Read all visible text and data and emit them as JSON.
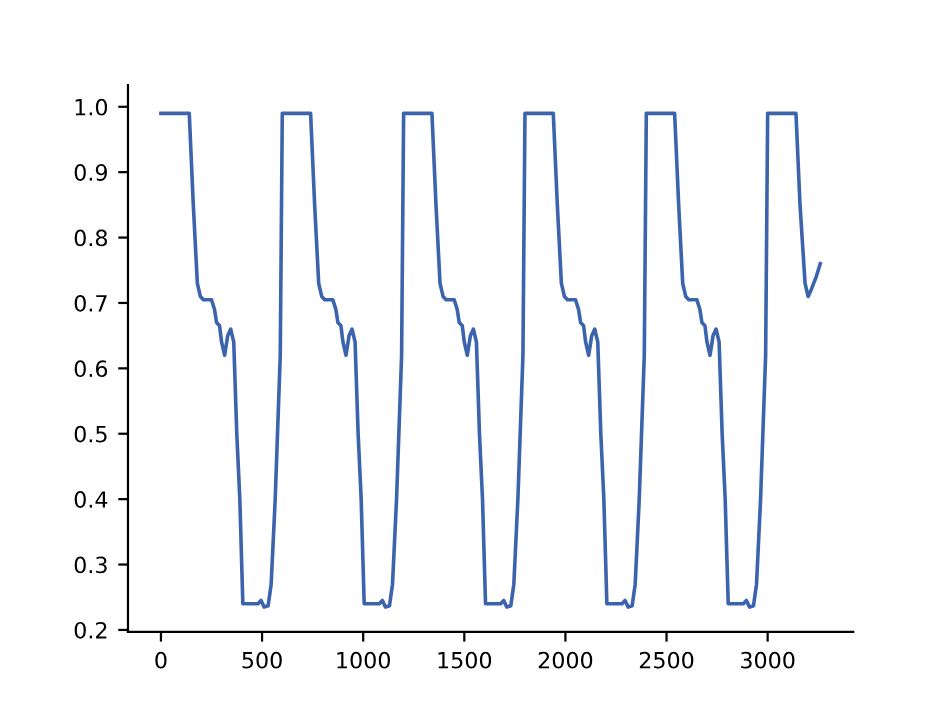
{
  "chart_data": {
    "type": "line",
    "xlim": [
      -163,
      3423
    ],
    "ylim": [
      0.197,
      1.033
    ],
    "xticks": [
      0,
      500,
      1000,
      1500,
      2000,
      2500,
      3000
    ],
    "yticks": [
      {
        "value": 0.2,
        "label": "0.2"
      },
      {
        "value": 0.3,
        "label": "0.3"
      },
      {
        "value": 0.4,
        "label": "0.4"
      },
      {
        "value": 0.5,
        "label": "0.5"
      },
      {
        "value": 0.6,
        "label": "0.6"
      },
      {
        "value": 0.7,
        "label": "0.7"
      },
      {
        "value": 0.8,
        "label": "0.8"
      },
      {
        "value": 0.9,
        "label": "0.9"
      },
      {
        "value": 1.0,
        "label": "1.0"
      }
    ],
    "grid": false,
    "marker": "none",
    "line_style": "solid",
    "series": [
      {
        "color": "#3b64ad",
        "x": [
          0,
          140,
          160,
          180,
          195,
          210,
          250,
          265,
          275,
          290,
          300,
          315,
          330,
          345,
          360,
          375,
          390,
          405,
          480,
          495,
          510,
          530,
          545,
          565,
          590,
          600,
          740,
          760,
          780,
          795,
          810,
          850,
          865,
          875,
          890,
          900,
          915,
          930,
          945,
          960,
          975,
          990,
          1005,
          1080,
          1095,
          1110,
          1130,
          1145,
          1165,
          1190,
          1200,
          1340,
          1360,
          1380,
          1395,
          1410,
          1450,
          1465,
          1475,
          1490,
          1500,
          1515,
          1530,
          1545,
          1560,
          1575,
          1590,
          1605,
          1680,
          1695,
          1710,
          1730,
          1745,
          1765,
          1790,
          1800,
          1940,
          1960,
          1980,
          1995,
          2010,
          2050,
          2065,
          2075,
          2090,
          2100,
          2115,
          2130,
          2145,
          2160,
          2175,
          2190,
          2205,
          2280,
          2295,
          2310,
          2330,
          2345,
          2365,
          2390,
          2400,
          2540,
          2560,
          2580,
          2595,
          2610,
          2650,
          2665,
          2675,
          2690,
          2700,
          2715,
          2730,
          2745,
          2760,
          2775,
          2790,
          2805,
          2880,
          2895,
          2910,
          2930,
          2945,
          2965,
          2990,
          3000,
          3140,
          3160,
          3185,
          3200,
          3215,
          3240,
          3260
        ],
        "values": [
          0.99,
          0.99,
          0.85,
          0.73,
          0.71,
          0.705,
          0.705,
          0.69,
          0.67,
          0.665,
          0.64,
          0.62,
          0.65,
          0.66,
          0.64,
          0.5,
          0.4,
          0.24,
          0.24,
          0.245,
          0.235,
          0.237,
          0.27,
          0.4,
          0.62,
          0.99,
          0.99,
          0.85,
          0.73,
          0.71,
          0.705,
          0.705,
          0.69,
          0.67,
          0.665,
          0.64,
          0.62,
          0.65,
          0.66,
          0.64,
          0.5,
          0.4,
          0.24,
          0.24,
          0.245,
          0.235,
          0.237,
          0.27,
          0.4,
          0.62,
          0.99,
          0.99,
          0.85,
          0.73,
          0.71,
          0.705,
          0.705,
          0.69,
          0.67,
          0.665,
          0.64,
          0.62,
          0.65,
          0.66,
          0.64,
          0.5,
          0.4,
          0.24,
          0.24,
          0.245,
          0.235,
          0.237,
          0.27,
          0.4,
          0.62,
          0.99,
          0.99,
          0.85,
          0.73,
          0.71,
          0.705,
          0.705,
          0.69,
          0.67,
          0.665,
          0.64,
          0.62,
          0.65,
          0.66,
          0.64,
          0.5,
          0.4,
          0.24,
          0.24,
          0.245,
          0.235,
          0.237,
          0.27,
          0.4,
          0.62,
          0.99,
          0.99,
          0.85,
          0.73,
          0.71,
          0.705,
          0.705,
          0.69,
          0.67,
          0.665,
          0.64,
          0.62,
          0.65,
          0.66,
          0.64,
          0.5,
          0.4,
          0.24,
          0.24,
          0.245,
          0.235,
          0.237,
          0.27,
          0.4,
          0.62,
          0.99,
          0.99,
          0.85,
          0.73,
          0.71,
          0.72,
          0.74,
          0.76
        ]
      }
    ]
  }
}
